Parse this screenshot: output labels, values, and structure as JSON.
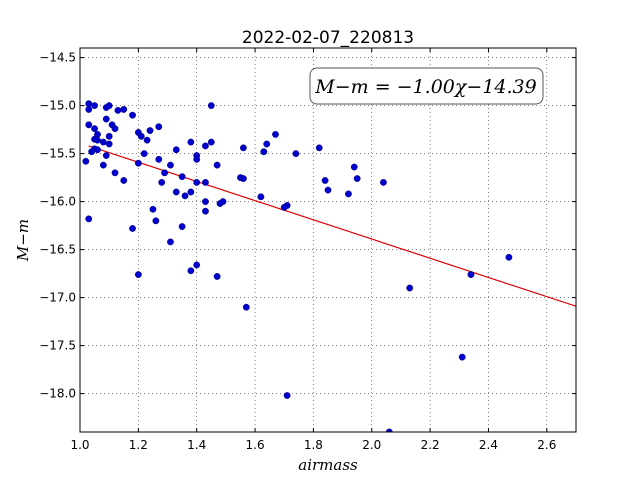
{
  "chart_data": {
    "type": "scatter",
    "title": "2022-02-07_220813",
    "xlabel": "airmass",
    "ylabel": "M−m",
    "xlim": [
      1.0,
      2.7
    ],
    "ylim": [
      -18.4,
      -14.4
    ],
    "y_inverted": true,
    "grid": true,
    "x_ticks": [
      "1.0",
      "1.2",
      "1.4",
      "1.6",
      "1.8",
      "2.0",
      "2.2",
      "2.4",
      "2.6"
    ],
    "y_ticks": [
      "−14.5",
      "−15.0",
      "−15.5",
      "−16.0",
      "−16.5",
      "−17.0",
      "−17.5",
      "−18.0"
    ],
    "annotation": "M−m = −1.00χ−14.39",
    "colors": {
      "points": "#0000cc",
      "fit": "#dd0000"
    },
    "fit": {
      "slope": -1.0,
      "intercept": -14.39,
      "x_range": [
        1.03,
        2.7
      ]
    },
    "points": [
      {
        "x": 1.03,
        "y": -14.98
      },
      {
        "x": 1.05,
        "y": -15.0
      },
      {
        "x": 1.1,
        "y": -15.0
      },
      {
        "x": 1.03,
        "y": -15.04
      },
      {
        "x": 1.09,
        "y": -15.02
      },
      {
        "x": 1.13,
        "y": -15.05
      },
      {
        "x": 1.15,
        "y": -15.04
      },
      {
        "x": 1.45,
        "y": -15.0
      },
      {
        "x": 1.18,
        "y": -15.1
      },
      {
        "x": 1.09,
        "y": -15.14
      },
      {
        "x": 1.03,
        "y": -15.2
      },
      {
        "x": 1.11,
        "y": -15.2
      },
      {
        "x": 1.05,
        "y": -15.24
      },
      {
        "x": 1.12,
        "y": -15.24
      },
      {
        "x": 1.27,
        "y": -15.22
      },
      {
        "x": 1.24,
        "y": -15.26
      },
      {
        "x": 1.2,
        "y": -15.28
      },
      {
        "x": 1.21,
        "y": -15.32
      },
      {
        "x": 1.67,
        "y": -15.3
      },
      {
        "x": 1.06,
        "y": -15.3
      },
      {
        "x": 1.1,
        "y": -15.32
      },
      {
        "x": 1.05,
        "y": -15.35
      },
      {
        "x": 1.08,
        "y": -15.38
      },
      {
        "x": 1.1,
        "y": -15.4
      },
      {
        "x": 1.06,
        "y": -15.36
      },
      {
        "x": 1.23,
        "y": -15.36
      },
      {
        "x": 1.38,
        "y": -15.38
      },
      {
        "x": 1.45,
        "y": -15.38
      },
      {
        "x": 1.64,
        "y": -15.4
      },
      {
        "x": 1.43,
        "y": -15.42
      },
      {
        "x": 1.56,
        "y": -15.44
      },
      {
        "x": 1.82,
        "y": -15.44
      },
      {
        "x": 1.05,
        "y": -15.45
      },
      {
        "x": 1.06,
        "y": -15.46
      },
      {
        "x": 1.04,
        "y": -15.48
      },
      {
        "x": 1.33,
        "y": -15.46
      },
      {
        "x": 1.63,
        "y": -15.48
      },
      {
        "x": 1.22,
        "y": -15.5
      },
      {
        "x": 1.09,
        "y": -15.52
      },
      {
        "x": 1.74,
        "y": -15.5
      },
      {
        "x": 1.4,
        "y": -15.52
      },
      {
        "x": 1.4,
        "y": -15.56
      },
      {
        "x": 1.27,
        "y": -15.56
      },
      {
        "x": 1.02,
        "y": -15.58
      },
      {
        "x": 1.08,
        "y": -15.62
      },
      {
        "x": 1.2,
        "y": -15.6
      },
      {
        "x": 1.31,
        "y": -15.62
      },
      {
        "x": 1.47,
        "y": -15.62
      },
      {
        "x": 1.94,
        "y": -15.64
      },
      {
        "x": 1.12,
        "y": -15.7
      },
      {
        "x": 1.29,
        "y": -15.7
      },
      {
        "x": 1.35,
        "y": -15.74
      },
      {
        "x": 1.55,
        "y": -15.75
      },
      {
        "x": 1.56,
        "y": -15.76
      },
      {
        "x": 1.95,
        "y": -15.76
      },
      {
        "x": 1.15,
        "y": -15.78
      },
      {
        "x": 1.84,
        "y": -15.78
      },
      {
        "x": 2.04,
        "y": -15.8
      },
      {
        "x": 1.28,
        "y": -15.8
      },
      {
        "x": 1.4,
        "y": -15.8
      },
      {
        "x": 1.43,
        "y": -15.8
      },
      {
        "x": 1.85,
        "y": -15.88
      },
      {
        "x": 1.33,
        "y": -15.9
      },
      {
        "x": 1.38,
        "y": -15.9
      },
      {
        "x": 1.36,
        "y": -15.94
      },
      {
        "x": 1.92,
        "y": -15.92
      },
      {
        "x": 1.62,
        "y": -15.95
      },
      {
        "x": 1.43,
        "y": -16.0
      },
      {
        "x": 1.48,
        "y": -16.02
      },
      {
        "x": 1.49,
        "y": -16.0
      },
      {
        "x": 1.71,
        "y": -16.04
      },
      {
        "x": 1.7,
        "y": -16.06
      },
      {
        "x": 1.25,
        "y": -16.08
      },
      {
        "x": 1.43,
        "y": -16.1
      },
      {
        "x": 1.03,
        "y": -16.18
      },
      {
        "x": 1.26,
        "y": -16.2
      },
      {
        "x": 1.35,
        "y": -16.26
      },
      {
        "x": 1.18,
        "y": -16.28
      },
      {
        "x": 1.31,
        "y": -16.42
      },
      {
        "x": 1.4,
        "y": -16.66
      },
      {
        "x": 1.38,
        "y": -16.72
      },
      {
        "x": 1.2,
        "y": -16.76
      },
      {
        "x": 1.47,
        "y": -16.78
      },
      {
        "x": 2.47,
        "y": -16.58
      },
      {
        "x": 2.34,
        "y": -16.76
      },
      {
        "x": 2.13,
        "y": -16.9
      },
      {
        "x": 1.57,
        "y": -17.1
      },
      {
        "x": 2.31,
        "y": -17.62
      },
      {
        "x": 1.71,
        "y": -18.02
      },
      {
        "x": 2.06,
        "y": -18.4
      }
    ]
  }
}
